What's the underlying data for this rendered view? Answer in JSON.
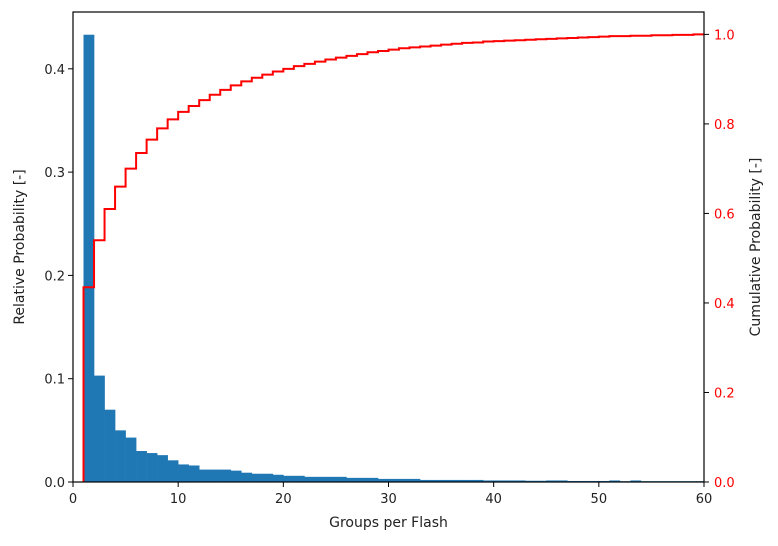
{
  "chart_data": {
    "type": "bar",
    "title": "",
    "xlabel": "Groups per Flash",
    "ylabel": "Relative Probability [-]",
    "y2label": "Cumulative Probability [-]",
    "xlim": [
      0,
      60
    ],
    "ylim": [
      0,
      0.455
    ],
    "y2lim": [
      0,
      1.05
    ],
    "x_ticks": [
      0,
      10,
      20,
      30,
      40,
      50,
      60
    ],
    "y_ticks": [
      0.0,
      0.1,
      0.2,
      0.3,
      0.4
    ],
    "y2_ticks": [
      0.0,
      0.2,
      0.4,
      0.6,
      0.8,
      1.0
    ],
    "grid": false,
    "legend": "none",
    "colors": {
      "histogram": "#1f77b4",
      "cumulative": "#ff0000",
      "axis2_text": "#ff0000"
    },
    "series": [
      {
        "type": "bar",
        "bin_width": 1,
        "bin_starts": [
          1,
          2,
          3,
          4,
          5,
          6,
          7,
          8,
          9,
          10,
          11,
          12,
          13,
          14,
          15,
          16,
          17,
          18,
          19,
          20,
          21,
          22,
          23,
          24,
          25,
          26,
          27,
          28,
          29,
          30,
          31,
          32,
          33,
          34,
          35,
          36,
          37,
          38,
          39,
          40,
          41,
          42,
          43,
          44,
          45,
          46,
          47,
          48,
          49,
          50,
          51,
          52,
          53,
          54,
          55,
          56,
          57,
          58,
          59
        ],
        "values": [
          0.433,
          0.103,
          0.07,
          0.05,
          0.043,
          0.03,
          0.028,
          0.026,
          0.021,
          0.017,
          0.016,
          0.012,
          0.012,
          0.012,
          0.011,
          0.009,
          0.008,
          0.008,
          0.007,
          0.006,
          0.006,
          0.005,
          0.005,
          0.005,
          0.005,
          0.004,
          0.004,
          0.004,
          0.003,
          0.003,
          0.003,
          0.003,
          0.002,
          0.002,
          0.002,
          0.002,
          0.002,
          0.002,
          0.0015,
          0.0015,
          0.0015,
          0.0015,
          0.0012,
          0.0012,
          0.0015,
          0.0015,
          0.001,
          0.001,
          0.001,
          0.001,
          0.0015,
          0.0008,
          0.0015,
          0.0008,
          0.0008,
          0.0008,
          0.0008,
          0.0008,
          0.0008
        ]
      },
      {
        "type": "step",
        "x": [
          1,
          2,
          3,
          4,
          5,
          6,
          7,
          8,
          9,
          10,
          11,
          12,
          13,
          14,
          15,
          16,
          17,
          18,
          19,
          20,
          21,
          22,
          23,
          24,
          25,
          26,
          27,
          28,
          29,
          30,
          31,
          32,
          33,
          34,
          35,
          36,
          37,
          38,
          39,
          40,
          41,
          42,
          43,
          44,
          45,
          46,
          47,
          48,
          49,
          50,
          51,
          52,
          53,
          54,
          55,
          56,
          57,
          58,
          59,
          60
        ],
        "values": [
          0.435,
          0.54,
          0.61,
          0.66,
          0.7,
          0.735,
          0.765,
          0.79,
          0.81,
          0.827,
          0.84,
          0.853,
          0.865,
          0.876,
          0.886,
          0.895,
          0.903,
          0.91,
          0.917,
          0.923,
          0.929,
          0.934,
          0.939,
          0.944,
          0.948,
          0.952,
          0.956,
          0.96,
          0.963,
          0.966,
          0.969,
          0.971,
          0.973,
          0.975,
          0.977,
          0.979,
          0.981,
          0.982,
          0.984,
          0.985,
          0.986,
          0.987,
          0.988,
          0.989,
          0.99,
          0.991,
          0.992,
          0.993,
          0.994,
          0.995,
          0.996,
          0.996,
          0.997,
          0.997,
          0.998,
          0.998,
          0.999,
          0.999,
          1.0,
          1.0
        ]
      }
    ]
  }
}
